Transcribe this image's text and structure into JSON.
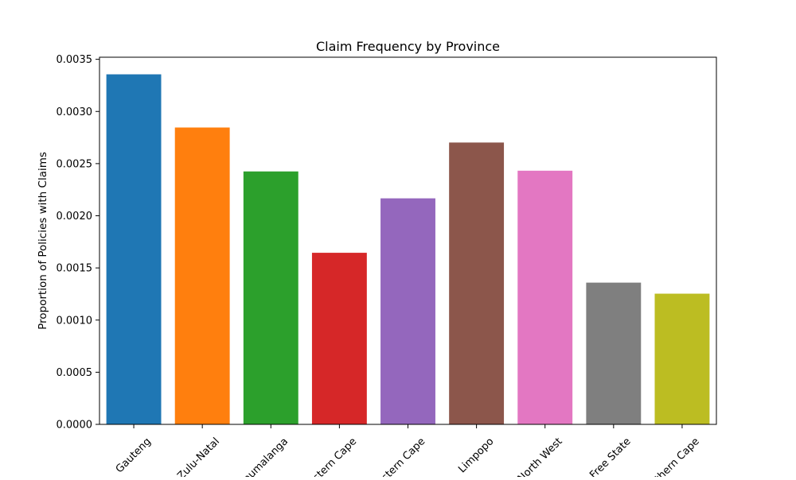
{
  "chart_data": {
    "type": "bar",
    "title": "Claim Frequency by Province",
    "xlabel": "",
    "ylabel": "Proportion of Policies with Claims",
    "categories": [
      "Gauteng",
      "KwaZulu-Natal",
      "Mpumalanga",
      "Western Cape",
      "Eastern Cape",
      "Limpopo",
      "North West",
      "Free State",
      "Northern Cape"
    ],
    "values": [
      0.003356,
      0.002846,
      0.002425,
      0.001645,
      0.002167,
      0.002702,
      0.002432,
      0.001359,
      0.001253
    ],
    "colors": [
      "#1f77b4",
      "#ff7f0e",
      "#2ca02c",
      "#d62728",
      "#9467bd",
      "#8c564b",
      "#e377c2",
      "#7f7f7f",
      "#bcbd22"
    ],
    "ylim": [
      0,
      0.00352
    ],
    "yticks": [
      "0.0000",
      "0.0005",
      "0.0010",
      "0.0015",
      "0.0020",
      "0.0025",
      "0.0030",
      "0.0035"
    ],
    "grid": false,
    "legend": "none"
  }
}
